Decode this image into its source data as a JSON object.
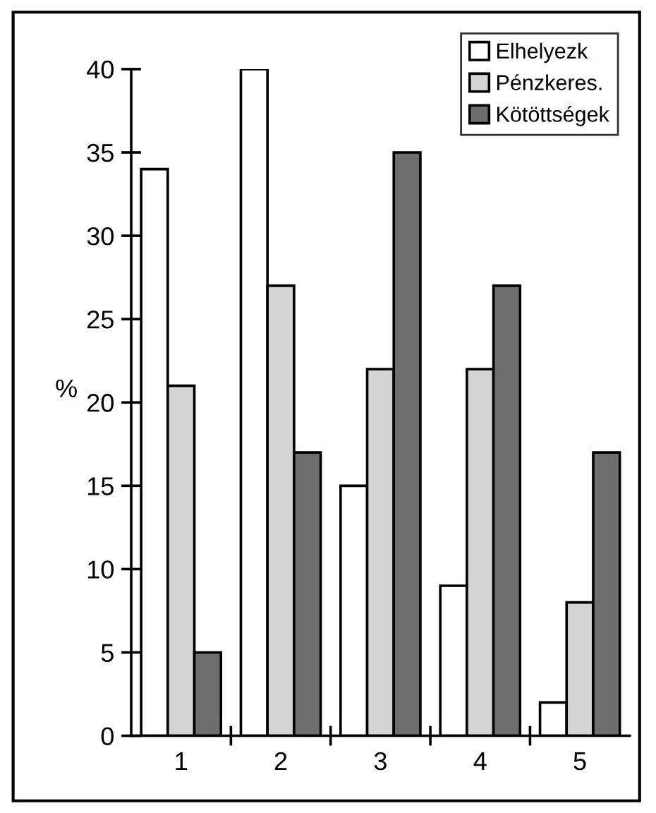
{
  "chart_data": {
    "type": "bar",
    "ylabel": "%",
    "categories": [
      "1",
      "2",
      "3",
      "4",
      "5"
    ],
    "series": [
      {
        "name": "Elhelyezk",
        "color": "#ffffff",
        "values": [
          34,
          40,
          15,
          9,
          2
        ]
      },
      {
        "name": "Pénzkeres.",
        "color": "#d4d4d4",
        "values": [
          21,
          27,
          22,
          22,
          8
        ]
      },
      {
        "name": "Kötöttségek",
        "color": "#6e6e6e",
        "values": [
          5,
          17,
          35,
          27,
          17
        ]
      }
    ],
    "ylim": [
      0,
      40
    ],
    "yticks": [
      0,
      5,
      10,
      15,
      20,
      25,
      30,
      35,
      40
    ],
    "grid": false,
    "legend": "top right"
  }
}
